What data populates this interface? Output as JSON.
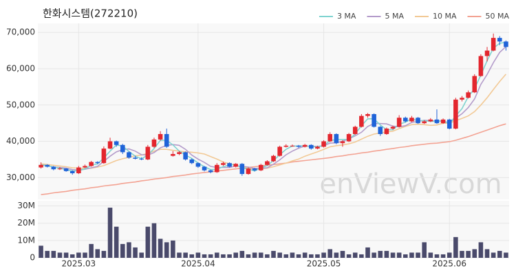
{
  "chart_data": {
    "type": "candlestick",
    "title": "한화시스템(272210)",
    "watermark": "enViewV.com",
    "categories": [
      null,
      null,
      null,
      null,
      null,
      null,
      "2025.03",
      null,
      null,
      null,
      null,
      null,
      null,
      null,
      null,
      null,
      null,
      null,
      null,
      null,
      null,
      null,
      null,
      null,
      null,
      "2025.04",
      null,
      null,
      null,
      null,
      null,
      null,
      null,
      null,
      null,
      null,
      null,
      null,
      null,
      null,
      null,
      null,
      null,
      null,
      null,
      "2025.05",
      null,
      null,
      null,
      null,
      null,
      null,
      null,
      null,
      null,
      null,
      null,
      null,
      null,
      null,
      null,
      null,
      null,
      null,
      null,
      "2025.06",
      null,
      null,
      null,
      null,
      null,
      null,
      null,
      null,
      null
    ],
    "ohlc": [
      [
        32800,
        34200,
        32500,
        33500
      ],
      [
        33500,
        33700,
        32800,
        33000
      ],
      [
        33000,
        33200,
        32000,
        32300
      ],
      [
        32300,
        32900,
        32100,
        32500
      ],
      [
        32500,
        32600,
        31600,
        31800
      ],
      [
        31800,
        32000,
        30800,
        31200
      ],
      [
        31200,
        33200,
        31000,
        32800
      ],
      [
        32800,
        33600,
        32600,
        33200
      ],
      [
        33200,
        34600,
        33000,
        34300
      ],
      [
        34300,
        34500,
        33700,
        34000
      ],
      [
        34000,
        38600,
        33800,
        38000
      ],
      [
        38000,
        41000,
        37800,
        40000
      ],
      [
        40000,
        40200,
        38500,
        39000
      ],
      [
        39000,
        39300,
        36500,
        37000
      ],
      [
        37000,
        37200,
        35200,
        35500
      ],
      [
        35500,
        36000,
        35000,
        35200
      ],
      [
        35200,
        35600,
        34800,
        35000
      ],
      [
        35000,
        39000,
        34800,
        38500
      ],
      [
        38500,
        41000,
        38200,
        40500
      ],
      [
        40500,
        42800,
        40200,
        42000
      ],
      [
        42000,
        43500,
        38200,
        38500
      ],
      [
        36000,
        37300,
        35800,
        36500
      ],
      [
        36500,
        37300,
        36200,
        37000
      ],
      [
        37000,
        37200,
        34700,
        35000
      ],
      [
        35000,
        35300,
        33700,
        34000
      ],
      [
        34000,
        34200,
        32700,
        33000
      ],
      [
        33000,
        33200,
        31700,
        32000
      ],
      [
        32000,
        32200,
        31200,
        31500
      ],
      [
        31500,
        34000,
        31300,
        33500
      ],
      [
        33500,
        34400,
        33200,
        34000
      ],
      [
        34000,
        34200,
        32800,
        33000
      ],
      [
        33000,
        34000,
        32800,
        33800
      ],
      [
        33800,
        34000,
        30500,
        31000
      ],
      [
        31000,
        32800,
        30800,
        32500
      ],
      [
        32500,
        32700,
        31700,
        32000
      ],
      [
        32000,
        33800,
        31800,
        33500
      ],
      [
        33500,
        34800,
        33300,
        34500
      ],
      [
        34500,
        36300,
        34300,
        36000
      ],
      [
        36000,
        38800,
        35800,
        38500
      ],
      [
        38500,
        39200,
        38300,
        38800
      ],
      [
        38800,
        39100,
        38500,
        38800
      ],
      [
        38800,
        39000,
        38200,
        38500
      ],
      [
        38500,
        39300,
        38300,
        39000
      ],
      [
        39000,
        39200,
        37700,
        38000
      ],
      [
        38000,
        38800,
        37800,
        38500
      ],
      [
        38500,
        40300,
        38300,
        40000
      ],
      [
        40000,
        42500,
        39800,
        42000
      ],
      [
        42000,
        42200,
        39200,
        39500
      ],
      [
        39500,
        40300,
        38500,
        40000
      ],
      [
        40000,
        42300,
        39800,
        42000
      ],
      [
        42000,
        44300,
        41800,
        44000
      ],
      [
        44000,
        47500,
        43800,
        47000
      ],
      [
        47000,
        47800,
        46500,
        47500
      ],
      [
        47500,
        47700,
        43800,
        44000
      ],
      [
        44000,
        44200,
        41500,
        42000
      ],
      [
        42000,
        43800,
        41800,
        43500
      ],
      [
        43500,
        44300,
        43200,
        44000
      ],
      [
        44000,
        47200,
        43800,
        46500
      ],
      [
        46500,
        46800,
        45200,
        45500
      ],
      [
        45500,
        47000,
        45300,
        46500
      ],
      [
        46500,
        46700,
        44800,
        45000
      ],
      [
        45000,
        45800,
        44800,
        45500
      ],
      [
        45500,
        46400,
        45300,
        46000
      ],
      [
        46000,
        48800,
        44800,
        45000
      ],
      [
        45000,
        46300,
        44800,
        46000
      ],
      [
        46000,
        46200,
        43300,
        43500
      ],
      [
        43500,
        52000,
        43300,
        51500
      ],
      [
        51500,
        52500,
        51000,
        52000
      ],
      [
        52000,
        54000,
        51800,
        53500
      ],
      [
        53500,
        58500,
        53300,
        58000
      ],
      [
        58000,
        64000,
        57800,
        63500
      ],
      [
        63500,
        66000,
        62000,
        65000
      ],
      [
        65000,
        69700,
        64800,
        68500
      ],
      [
        68500,
        69000,
        66500,
        67500
      ],
      [
        67500,
        67800,
        65000,
        66000
      ]
    ],
    "up_color": "#e3262e",
    "down_color": "#1f63d8",
    "ylim": [
      24000,
      72500
    ],
    "yticks": [
      {
        "value": 30000,
        "label": "30,000"
      },
      {
        "value": 40000,
        "label": "40,000"
      },
      {
        "value": 50000,
        "label": "50,000"
      },
      {
        "value": 60000,
        "label": "60,000"
      },
      {
        "value": 70000,
        "label": "70,000"
      }
    ],
    "grid": true,
    "legend": "top-right",
    "series": [
      {
        "name": "3 MA",
        "color": "#7fd3d0",
        "values": [
          33500,
          33300,
          32900,
          32600,
          32200,
          31800,
          31900,
          32400,
          33400,
          33800,
          35400,
          37300,
          39000,
          38700,
          37200,
          35900,
          35200,
          36200,
          38000,
          40300,
          40300,
          39000,
          37300,
          36200,
          35300,
          34000,
          33000,
          32200,
          32300,
          33000,
          33500,
          33600,
          32600,
          32400,
          31800,
          32700,
          33300,
          34700,
          36300,
          37800,
          38700,
          38700,
          38800,
          38500,
          38500,
          38800,
          40200,
          40500,
          40500,
          40500,
          42000,
          44300,
          46200,
          46200,
          44500,
          43200,
          43200,
          44700,
          45300,
          46200,
          45700,
          45700,
          45500,
          45500,
          45700,
          44800,
          47000,
          49000,
          52300,
          54500,
          58300,
          62200,
          65700,
          67000,
          67300
        ]
      },
      {
        "name": "5 MA",
        "color": "#b39bca",
        "values": [
          33500,
          33300,
          32900,
          32800,
          32600,
          32200,
          32100,
          32300,
          32700,
          33100,
          34500,
          35900,
          37100,
          37700,
          37900,
          37300,
          36300,
          36200,
          36900,
          38200,
          38900,
          39100,
          38900,
          37800,
          36200,
          35100,
          34200,
          33100,
          32800,
          32800,
          32800,
          33200,
          33100,
          32900,
          32500,
          32600,
          32700,
          33700,
          34900,
          36300,
          37300,
          38100,
          38700,
          38600,
          38600,
          38800,
          39500,
          39600,
          40000,
          40700,
          41500,
          42500,
          44100,
          44900,
          44900,
          44800,
          44200,
          44000,
          44300,
          45200,
          45500,
          45800,
          45700,
          45600,
          45500,
          45200,
          46400,
          47600,
          49300,
          51700,
          55700,
          58400,
          61700,
          64500,
          66100
        ]
      },
      {
        "name": "10 MA",
        "color": "#f2c995",
        "values": [
          33800,
          33600,
          33400,
          33200,
          33000,
          32700,
          32600,
          32500,
          32600,
          32900,
          33300,
          34000,
          34700,
          35200,
          35600,
          36000,
          36200,
          36700,
          37300,
          37800,
          37800,
          37500,
          37300,
          37100,
          37000,
          36800,
          36500,
          35800,
          35100,
          34300,
          33800,
          33500,
          32900,
          32600,
          32400,
          32400,
          32600,
          33000,
          33500,
          34000,
          34600,
          35100,
          35900,
          36500,
          37100,
          37800,
          38500,
          38800,
          39000,
          39300,
          39800,
          40600,
          41400,
          42000,
          42300,
          42600,
          42800,
          43500,
          44100,
          44600,
          44700,
          44600,
          44400,
          44500,
          45000,
          45000,
          45700,
          46300,
          47000,
          48200,
          50000,
          52000,
          54300,
          56500,
          58500
        ]
      },
      {
        "name": "50 MA",
        "color": "#f3a292",
        "values": [
          25300,
          25500,
          25800,
          26000,
          26200,
          26500,
          26700,
          26900,
          27200,
          27400,
          27700,
          27900,
          28100,
          28400,
          28600,
          28800,
          29100,
          29300,
          29600,
          29800,
          30000,
          30300,
          30500,
          30700,
          31000,
          31200,
          31400,
          31600,
          31800,
          32000,
          32200,
          32400,
          32600,
          32800,
          33000,
          33200,
          33400,
          33600,
          33800,
          34000,
          34300,
          34500,
          34700,
          34900,
          35100,
          35300,
          35500,
          35800,
          36000,
          36300,
          36500,
          36800,
          37000,
          37300,
          37500,
          37800,
          38000,
          38300,
          38500,
          38800,
          39000,
          39200,
          39400,
          39500,
          39700,
          39900,
          40300,
          40800,
          41300,
          41900,
          42500,
          43100,
          43700,
          44300,
          44800
        ]
      }
    ],
    "volume": {
      "color": "#4a4a6b",
      "ylim": [
        0,
        33000000
      ],
      "yticks": [
        0,
        {
          "value": 10000000,
          "label": "10M"
        },
        {
          "value": 20000000,
          "label": "20M"
        },
        {
          "value": 30000000,
          "label": "30M"
        }
      ],
      "values": [
        7000000,
        4000000,
        4000000,
        3000000,
        3000000,
        2000000,
        3000000,
        3000000,
        8000000,
        5000000,
        4000000,
        29000000,
        18000000,
        8000000,
        9000000,
        6000000,
        3000000,
        18000000,
        20000000,
        11000000,
        9000000,
        10000000,
        3000000,
        3000000,
        2000000,
        3000000,
        2000000,
        2000000,
        3000000,
        2000000,
        2000000,
        3000000,
        4000000,
        2000000,
        3000000,
        3000000,
        2000000,
        4000000,
        3000000,
        2000000,
        3000000,
        2000000,
        3000000,
        2000000,
        2000000,
        3000000,
        5000000,
        3000000,
        4000000,
        2000000,
        3000000,
        2000000,
        6000000,
        3000000,
        4000000,
        4000000,
        3000000,
        3000000,
        2000000,
        3000000,
        3000000,
        9000000,
        3000000,
        2000000,
        2000000,
        3000000,
        12000000,
        4000000,
        4000000,
        5000000,
        9000000,
        5000000,
        3000000,
        4000000,
        3000000
      ]
    }
  }
}
